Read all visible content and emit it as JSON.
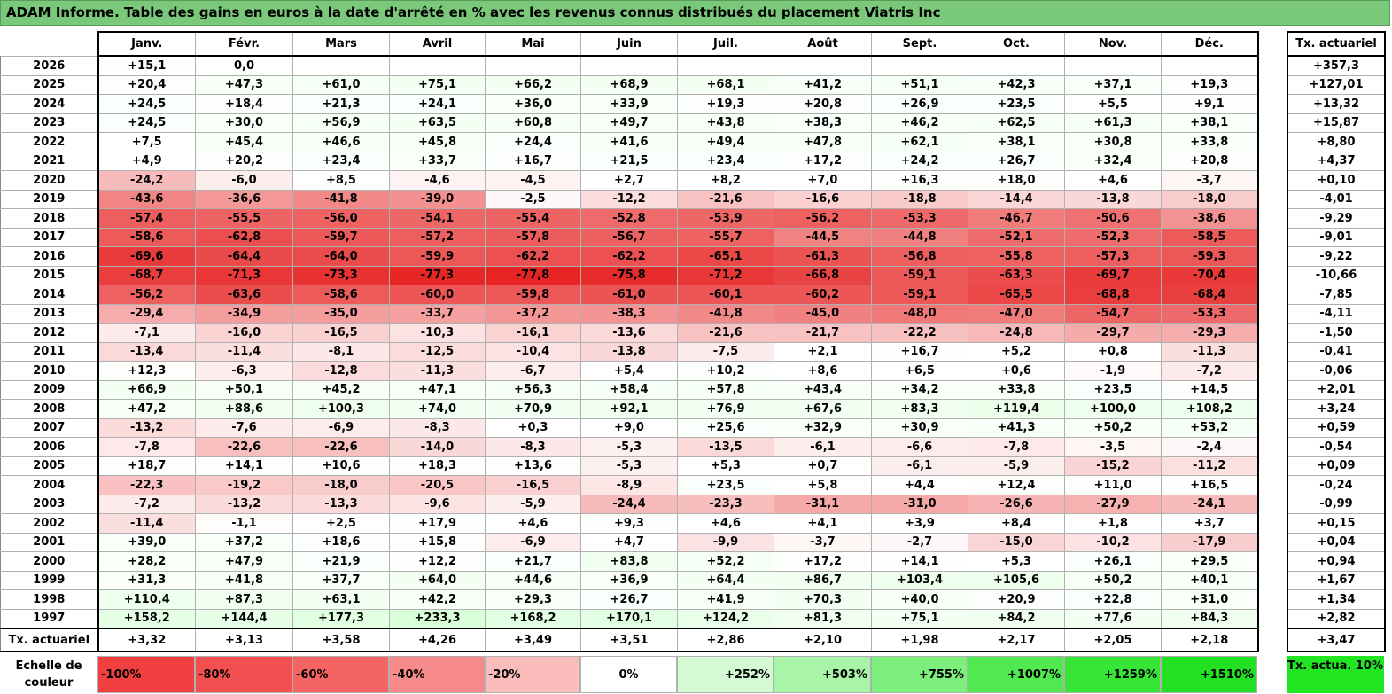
{
  "title": "ADAM Informe. Table des gains en euros à la date d'arrêté en % avec les revenus connus distribués du placement Viatris Inc",
  "months": [
    "Janv.",
    "Févr.",
    "Mars",
    "Avril",
    "Mai",
    "Juin",
    "Juil.",
    "Août",
    "Sept.",
    "Oct.",
    "Nov.",
    "Déc."
  ],
  "side_header": "Tx. actuariel",
  "rows": [
    {
      "year": "2026",
      "values": [
        "+15,1",
        "0,0",
        "",
        "",
        "",
        "",
        "",
        "",
        "",
        "",
        "",
        ""
      ],
      "tx": "+357,3"
    },
    {
      "year": "2025",
      "values": [
        "+20,4",
        "+47,3",
        "+61,0",
        "+75,1",
        "+66,2",
        "+68,9",
        "+68,1",
        "+41,2",
        "+51,1",
        "+42,3",
        "+37,1",
        "+19,3"
      ],
      "tx": "+127,01"
    },
    {
      "year": "2024",
      "values": [
        "+24,5",
        "+18,4",
        "+21,3",
        "+24,1",
        "+36,0",
        "+33,9",
        "+19,3",
        "+20,8",
        "+26,9",
        "+23,5",
        "+5,5",
        "+9,1"
      ],
      "tx": "+13,32"
    },
    {
      "year": "2023",
      "values": [
        "+24,5",
        "+30,0",
        "+56,9",
        "+63,5",
        "+60,8",
        "+49,7",
        "+43,8",
        "+38,3",
        "+46,2",
        "+62,5",
        "+61,3",
        "+38,1"
      ],
      "tx": "+15,87"
    },
    {
      "year": "2022",
      "values": [
        "+7,5",
        "+45,4",
        "+46,6",
        "+45,8",
        "+24,4",
        "+41,6",
        "+49,4",
        "+47,8",
        "+62,1",
        "+38,1",
        "+30,8",
        "+33,8"
      ],
      "tx": "+8,80"
    },
    {
      "year": "2021",
      "values": [
        "+4,9",
        "+20,2",
        "+23,4",
        "+33,7",
        "+16,7",
        "+21,5",
        "+23,4",
        "+17,2",
        "+24,2",
        "+26,7",
        "+32,4",
        "+20,8"
      ],
      "tx": "+4,37"
    },
    {
      "year": "2020",
      "values": [
        "-24,2",
        "-6,0",
        "+8,5",
        "-4,6",
        "-4,5",
        "+2,7",
        "+8,2",
        "+7,0",
        "+16,3",
        "+18,0",
        "+4,6",
        "-3,7"
      ],
      "tx": "+0,10"
    },
    {
      "year": "2019",
      "values": [
        "-43,6",
        "-36,6",
        "-41,8",
        "-39,0",
        "-2,5",
        "-12,2",
        "-21,6",
        "-16,6",
        "-18,8",
        "-14,4",
        "-13,8",
        "-18,0"
      ],
      "tx": "-4,01"
    },
    {
      "year": "2018",
      "values": [
        "-57,4",
        "-55,5",
        "-56,0",
        "-54,1",
        "-55,4",
        "-52,8",
        "-53,9",
        "-56,2",
        "-53,3",
        "-46,7",
        "-50,6",
        "-38,6"
      ],
      "tx": "-9,29"
    },
    {
      "year": "2017",
      "values": [
        "-58,6",
        "-62,8",
        "-59,7",
        "-57,2",
        "-57,8",
        "-56,7",
        "-55,7",
        "-44,5",
        "-44,8",
        "-52,1",
        "-52,3",
        "-58,5"
      ],
      "tx": "-9,01"
    },
    {
      "year": "2016",
      "values": [
        "-69,6",
        "-64,4",
        "-64,0",
        "-59,9",
        "-62,2",
        "-62,2",
        "-65,1",
        "-61,3",
        "-56,8",
        "-55,8",
        "-57,3",
        "-59,3"
      ],
      "tx": "-9,22"
    },
    {
      "year": "2015",
      "values": [
        "-68,7",
        "-71,3",
        "-73,3",
        "-77,3",
        "-77,8",
        "-75,8",
        "-71,2",
        "-66,8",
        "-59,1",
        "-63,3",
        "-69,7",
        "-70,4"
      ],
      "tx": "-10,66"
    },
    {
      "year": "2014",
      "values": [
        "-56,2",
        "-63,6",
        "-58,6",
        "-60,0",
        "-59,8",
        "-61,0",
        "-60,1",
        "-60,2",
        "-59,1",
        "-65,5",
        "-68,8",
        "-68,4"
      ],
      "tx": "-7,85"
    },
    {
      "year": "2013",
      "values": [
        "-29,4",
        "-34,9",
        "-35,0",
        "-33,7",
        "-37,2",
        "-38,3",
        "-41,8",
        "-45,0",
        "-48,0",
        "-47,0",
        "-54,7",
        "-53,3"
      ],
      "tx": "-4,11"
    },
    {
      "year": "2012",
      "values": [
        "-7,1",
        "-16,0",
        "-16,5",
        "-10,3",
        "-16,1",
        "-13,6",
        "-21,6",
        "-21,7",
        "-22,2",
        "-24,8",
        "-29,7",
        "-29,3"
      ],
      "tx": "-1,50"
    },
    {
      "year": "2011",
      "values": [
        "-13,4",
        "-11,4",
        "-8,1",
        "-12,5",
        "-10,4",
        "-13,8",
        "-7,5",
        "+2,1",
        "+16,7",
        "+5,2",
        "+0,8",
        "-11,3"
      ],
      "tx": "-0,41"
    },
    {
      "year": "2010",
      "values": [
        "+12,3",
        "-6,3",
        "-12,8",
        "-11,3",
        "-6,7",
        "+5,4",
        "+10,2",
        "+8,6",
        "+6,5",
        "+0,6",
        "-1,9",
        "-7,2"
      ],
      "tx": "-0,06"
    },
    {
      "year": "2009",
      "values": [
        "+66,9",
        "+50,1",
        "+45,2",
        "+47,1",
        "+56,3",
        "+58,4",
        "+57,8",
        "+43,4",
        "+34,2",
        "+33,8",
        "+23,5",
        "+14,5"
      ],
      "tx": "+2,01"
    },
    {
      "year": "2008",
      "values": [
        "+47,2",
        "+88,6",
        "+100,3",
        "+74,0",
        "+70,9",
        "+92,1",
        "+76,9",
        "+67,6",
        "+83,3",
        "+119,4",
        "+100,0",
        "+108,2"
      ],
      "tx": "+3,24"
    },
    {
      "year": "2007",
      "values": [
        "-13,2",
        "-7,6",
        "-6,9",
        "-8,3",
        "+0,3",
        "+9,0",
        "+25,6",
        "+32,9",
        "+30,9",
        "+41,3",
        "+50,2",
        "+53,2"
      ],
      "tx": "+0,59"
    },
    {
      "year": "2006",
      "values": [
        "-7,8",
        "-22,6",
        "-22,6",
        "-14,0",
        "-8,3",
        "-5,3",
        "-13,5",
        "-6,1",
        "-6,6",
        "-7,8",
        "-3,5",
        "-2,4"
      ],
      "tx": "-0,54"
    },
    {
      "year": "2005",
      "values": [
        "+18,7",
        "+14,1",
        "+10,6",
        "+18,3",
        "+13,6",
        "-5,3",
        "+5,3",
        "+0,7",
        "-6,1",
        "-5,9",
        "-15,2",
        "-11,2"
      ],
      "tx": "+0,09"
    },
    {
      "year": "2004",
      "values": [
        "-22,3",
        "-19,2",
        "-18,0",
        "-20,5",
        "-16,5",
        "-8,9",
        "+23,5",
        "+5,8",
        "+4,4",
        "+12,4",
        "+11,0",
        "+16,5"
      ],
      "tx": "-0,24"
    },
    {
      "year": "2003",
      "values": [
        "-7,2",
        "-13,2",
        "-13,3",
        "-9,6",
        "-5,9",
        "-24,4",
        "-23,3",
        "-31,1",
        "-31,0",
        "-26,6",
        "-27,9",
        "-24,1"
      ],
      "tx": "-0,99"
    },
    {
      "year": "2002",
      "values": [
        "-11,4",
        "-1,1",
        "+2,5",
        "+17,9",
        "+4,6",
        "+9,3",
        "+4,6",
        "+4,1",
        "+3,9",
        "+8,4",
        "+1,8",
        "+3,7"
      ],
      "tx": "+0,15"
    },
    {
      "year": "2001",
      "values": [
        "+39,0",
        "+37,2",
        "+18,6",
        "+15,8",
        "-6,9",
        "+4,7",
        "-9,9",
        "-3,7",
        "-2,7",
        "-15,0",
        "-10,2",
        "-17,9"
      ],
      "tx": "+0,04"
    },
    {
      "year": "2000",
      "values": [
        "+28,2",
        "+47,9",
        "+21,9",
        "+12,2",
        "+21,7",
        "+83,8",
        "+52,2",
        "+17,2",
        "+14,1",
        "+5,3",
        "+26,1",
        "+29,5"
      ],
      "tx": "+0,94"
    },
    {
      "year": "1999",
      "values": [
        "+31,3",
        "+41,8",
        "+37,7",
        "+64,0",
        "+44,6",
        "+36,9",
        "+64,4",
        "+86,7",
        "+103,4",
        "+105,6",
        "+50,2",
        "+40,1"
      ],
      "tx": "+1,67"
    },
    {
      "year": "1998",
      "values": [
        "+110,4",
        "+87,3",
        "+63,1",
        "+42,2",
        "+29,3",
        "+26,7",
        "+41,9",
        "+70,3",
        "+40,0",
        "+20,9",
        "+22,8",
        "+31,0"
      ],
      "tx": "+1,34"
    },
    {
      "year": "1997",
      "values": [
        "+158,2",
        "+144,4",
        "+177,3",
        "+233,3",
        "+168,2",
        "+170,1",
        "+124,2",
        "+81,3",
        "+75,1",
        "+84,2",
        "+77,6",
        "+84,3"
      ],
      "tx": "+2,82"
    }
  ],
  "total_row": {
    "label": "Tx. actuariel",
    "values": [
      "+3,32",
      "+3,13",
      "+3,58",
      "+4,26",
      "+3,49",
      "+3,51",
      "+2,86",
      "+2,10",
      "+1,98",
      "+2,17",
      "+2,05",
      "+2,18"
    ],
    "tx": "+3,47"
  },
  "scale": {
    "label": "Echelle de couleur",
    "cells": [
      {
        "text": "-100%",
        "color": "#f04040",
        "align": "left"
      },
      {
        "text": "-80%",
        "color": "#f25050",
        "align": "left"
      },
      {
        "text": "-60%",
        "color": "#f46464",
        "align": "left"
      },
      {
        "text": "-40%",
        "color": "#f78a8a",
        "align": "left"
      },
      {
        "text": "-20%",
        "color": "#fbbcbc",
        "align": "left"
      },
      {
        "text": "0%",
        "color": "#ffffff",
        "align": "center"
      },
      {
        "text": "+252%",
        "color": "#d4fad4",
        "align": "right"
      },
      {
        "text": "+503%",
        "color": "#a8f4a8",
        "align": "right"
      },
      {
        "text": "+755%",
        "color": "#7cef7c",
        "align": "right"
      },
      {
        "text": "+1007%",
        "color": "#50ea50",
        "align": "right"
      },
      {
        "text": "+1259%",
        "color": "#36e536",
        "align": "right"
      },
      {
        "text": "+1510%",
        "color": "#22e022",
        "align": "right"
      }
    ],
    "side_label": "Tx. actua. 10%",
    "side_color": "#22e622"
  }
}
